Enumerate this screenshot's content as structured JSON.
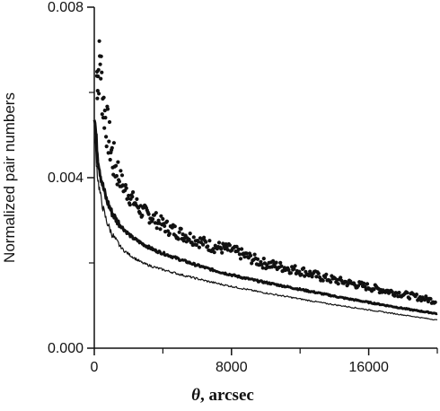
{
  "chart_data": {
    "type": "scatter",
    "title": "",
    "xlabel": "θ, arcsec",
    "xlabel_symbol": "θ",
    "xlabel_rest": ", arcsec",
    "ylabel": "Normalized pair numbers",
    "xlim": [
      0,
      20000
    ],
    "ylim": [
      0.0,
      0.008
    ],
    "x_ticks": [
      0,
      8000,
      16000
    ],
    "x_minor_ticks": [
      4000,
      12000,
      20000
    ],
    "y_ticks": [
      "0.000",
      "0.004",
      "0.008"
    ],
    "y_tick_values": [
      0.0,
      0.004,
      0.008
    ],
    "y_minor_ticks": [
      0.002,
      0.006
    ],
    "grid": false,
    "legend": "none",
    "series": [
      {
        "style": "dots",
        "color": "#111111",
        "x": [
          200,
          350,
          500,
          700,
          900,
          1100,
          1400,
          1700,
          2000,
          2400,
          2800,
          3300,
          3800,
          4400,
          5000,
          5600,
          6200,
          6800,
          7400,
          8000,
          8600,
          9200,
          9800,
          10400,
          11000,
          11600,
          12200,
          12800,
          13400,
          14000,
          14600,
          15200,
          15800,
          16400,
          17000,
          17600,
          18200,
          18800,
          19400,
          19900
        ],
        "y": [
          0.0064,
          0.0068,
          0.0058,
          0.0053,
          0.0048,
          0.0044,
          0.0041,
          0.0038,
          0.0036,
          0.0034,
          0.0032,
          0.0031,
          0.00295,
          0.0028,
          0.0027,
          0.0026,
          0.0025,
          0.0024,
          0.00235,
          0.0023,
          0.0022,
          0.0021,
          0.002,
          0.00195,
          0.0019,
          0.00185,
          0.0018,
          0.00172,
          0.00165,
          0.0016,
          0.00155,
          0.0015,
          0.00145,
          0.0014,
          0.00135,
          0.0013,
          0.00125,
          0.0012,
          0.00115,
          0.0011
        ]
      },
      {
        "style": "thick-line",
        "color": "#111111",
        "x": [
          0,
          100,
          200,
          350,
          500,
          700,
          1000,
          1300,
          1700,
          2200,
          2800,
          3500,
          4200,
          5000,
          5800,
          6600,
          7500,
          8500,
          9500,
          10500,
          11500,
          12500,
          13500,
          14500,
          15500,
          16500,
          17500,
          18500,
          19500,
          20000
        ],
        "y": [
          0.0055,
          0.005,
          0.0045,
          0.0041,
          0.0038,
          0.0035,
          0.0032,
          0.003,
          0.0028,
          0.0026,
          0.00245,
          0.0023,
          0.0022,
          0.00208,
          0.00197,
          0.00187,
          0.00177,
          0.00167,
          0.00158,
          0.0015,
          0.00142,
          0.00134,
          0.00126,
          0.00118,
          0.00111,
          0.00104,
          0.00097,
          0.0009,
          0.00084,
          0.00081
        ]
      },
      {
        "style": "thin-line",
        "color": "#111111",
        "x": [
          0,
          100,
          200,
          350,
          500,
          700,
          1000,
          1300,
          1700,
          2200,
          2800,
          3500,
          4200,
          5000,
          5800,
          6600,
          7500,
          8500,
          9500,
          10500,
          11500,
          12500,
          13500,
          14500,
          15500,
          16500,
          17500,
          18500,
          19500,
          20000
        ],
        "y": [
          0.0051,
          0.0045,
          0.004,
          0.0036,
          0.0033,
          0.003,
          0.0027,
          0.0025,
          0.0023,
          0.00215,
          0.002,
          0.0019,
          0.00182,
          0.00173,
          0.00165,
          0.00157,
          0.00149,
          0.00141,
          0.00133,
          0.00126,
          0.00119,
          0.00112,
          0.00105,
          0.00099,
          0.00093,
          0.00087,
          0.00081,
          0.00075,
          0.00069,
          0.00066
        ]
      }
    ]
  }
}
